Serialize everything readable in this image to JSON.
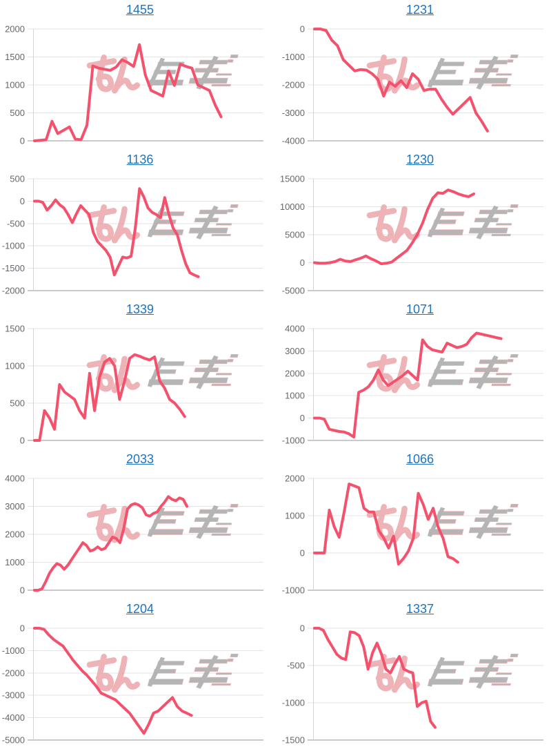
{
  "style": {
    "link_blue": "#1e73be",
    "line_color": "#f4516c",
    "grid_color": "#e3e3e3",
    "grid_bottom_color": "#c9c9c9",
    "axis_color": "#d4d4d4",
    "tick_label_color": "#63676b",
    "background": "#ffffff"
  },
  "watermark": {
    "text": "みんレポ",
    "pink": "#eba6ab",
    "gray": "#a3a3a3"
  },
  "chart_data": [
    {
      "type": "line",
      "title": "1455",
      "xlabel": "",
      "ylabel": "",
      "ylim": [
        0,
        2000
      ],
      "yticks": [
        2000,
        1500,
        1000,
        500,
        0
      ],
      "span": 0.82,
      "grid": true,
      "legend": false,
      "values": [
        0,
        10,
        20,
        350,
        130,
        190,
        250,
        30,
        20,
        280,
        1340,
        1300,
        1280,
        1260,
        1320,
        1450,
        1400,
        1330,
        1720,
        1180,
        900,
        850,
        800,
        1250,
        990,
        1370,
        1330,
        1300,
        1000,
        950,
        900,
        640,
        430
      ]
    },
    {
      "type": "line",
      "title": "1231",
      "xlabel": "",
      "ylabel": "",
      "ylim": [
        -4000,
        0
      ],
      "yticks": [
        0,
        -1000,
        -2000,
        -3000,
        -4000
      ],
      "span": 0.76,
      "grid": true,
      "legend": false,
      "values": [
        0,
        0,
        -50,
        -400,
        -600,
        -1100,
        -1300,
        -1500,
        -1450,
        -1470,
        -1600,
        -1800,
        -2400,
        -1900,
        -2050,
        -1850,
        -2100,
        -1600,
        -1800,
        -2200,
        -2150,
        -2150,
        -2500,
        -2800,
        -3050,
        -2850,
        -2650,
        -2450,
        -3000,
        -3300,
        -3650
      ]
    },
    {
      "type": "line",
      "title": "1136",
      "xlabel": "",
      "ylabel": "",
      "ylim": [
        -2000,
        500
      ],
      "yticks": [
        500,
        0,
        -500,
        -1000,
        -1500,
        -2000
      ],
      "span": 0.72,
      "grid": true,
      "legend": false,
      "values": [
        0,
        0,
        -30,
        -200,
        -100,
        30,
        -80,
        -150,
        -300,
        -480,
        -280,
        -100,
        -200,
        -300,
        -700,
        -900,
        -1000,
        -1100,
        -1250,
        -1650,
        -1450,
        -1250,
        -1270,
        -1230,
        -600,
        280,
        100,
        -150,
        -250,
        -300,
        -370,
        80,
        -300,
        -600,
        -750,
        -1100,
        -1400,
        -1600,
        -1650,
        -1690
      ]
    },
    {
      "type": "line",
      "title": "1230",
      "xlabel": "",
      "ylabel": "",
      "ylim": [
        -5000,
        15000
      ],
      "yticks": [
        15000,
        10000,
        5000,
        0,
        -5000
      ],
      "span": 0.7,
      "grid": true,
      "legend": false,
      "values": [
        0,
        -100,
        -100,
        0,
        200,
        600,
        300,
        200,
        500,
        800,
        1200,
        700,
        300,
        -200,
        -100,
        100,
        800,
        1500,
        2200,
        3500,
        5000,
        7000,
        9500,
        11500,
        12500,
        12400,
        13000,
        12700,
        12300,
        12000,
        11800,
        12300
      ]
    },
    {
      "type": "line",
      "title": "1339",
      "xlabel": "",
      "ylabel": "",
      "ylim": [
        0,
        1500
      ],
      "yticks": [
        1500,
        1000,
        500,
        0
      ],
      "span": 0.66,
      "grid": true,
      "legend": false,
      "values": [
        0,
        0,
        400,
        300,
        150,
        750,
        650,
        600,
        550,
        400,
        300,
        900,
        400,
        850,
        1050,
        1100,
        1000,
        550,
        800,
        1100,
        1150,
        1130,
        1100,
        1080,
        1120,
        800,
        700,
        550,
        500,
        420,
        320
      ]
    },
    {
      "type": "line",
      "title": "1071",
      "xlabel": "",
      "ylabel": "",
      "ylim": [
        -1000,
        4000
      ],
      "yticks": [
        4000,
        3000,
        2000,
        1000,
        0,
        -1000
      ],
      "span": 0.82,
      "grid": true,
      "legend": false,
      "values": [
        0,
        0,
        -50,
        -500,
        -550,
        -600,
        -620,
        -700,
        -850,
        1150,
        1250,
        1400,
        1700,
        2150,
        1700,
        1450,
        1600,
        1750,
        1900,
        2100,
        1900,
        1700,
        3500,
        3200,
        3050,
        3000,
        2950,
        3350,
        3250,
        3150,
        3200,
        3300,
        3600,
        3800,
        3750,
        3700,
        3650,
        3600,
        3550
      ]
    },
    {
      "type": "line",
      "title": "2033",
      "xlabel": "",
      "ylabel": "",
      "ylim": [
        0,
        4000
      ],
      "yticks": [
        4000,
        3000,
        2000,
        1000,
        0
      ],
      "span": 0.67,
      "grid": true,
      "legend": false,
      "values": [
        0,
        0,
        50,
        300,
        600,
        800,
        950,
        900,
        750,
        900,
        1100,
        1300,
        1500,
        1700,
        1600,
        1400,
        1450,
        1550,
        1450,
        1500,
        1700,
        1900,
        1850,
        1700,
        2200,
        2900,
        3050,
        3100,
        3050,
        2950,
        2700,
        2650,
        2750,
        2800,
        3000,
        3150,
        3350,
        3250,
        3200,
        3300,
        3250,
        3000
      ]
    },
    {
      "type": "line",
      "title": "1066",
      "xlabel": "",
      "ylabel": "",
      "ylim": [
        -1000,
        2000
      ],
      "yticks": [
        2000,
        1000,
        0,
        -1000
      ],
      "span": 0.63,
      "grid": true,
      "legend": false,
      "values": [
        0,
        0,
        0,
        1150,
        700,
        420,
        1100,
        1850,
        1800,
        1750,
        1200,
        1100,
        1100,
        600,
        400,
        130,
        450,
        -300,
        -150,
        50,
        400,
        1600,
        1300,
        900,
        1200,
        700,
        400,
        -100,
        -150,
        -250
      ]
    },
    {
      "type": "line",
      "title": "1204",
      "xlabel": "",
      "ylabel": "",
      "ylim": [
        -5000,
        0
      ],
      "yticks": [
        0,
        -1000,
        -2000,
        -3000,
        -4000,
        -5000
      ],
      "span": 0.69,
      "grid": true,
      "legend": false,
      "values": [
        0,
        0,
        -50,
        -300,
        -500,
        -650,
        -800,
        -1100,
        -1400,
        -1650,
        -1900,
        -2100,
        -2350,
        -2600,
        -2900,
        -3000,
        -3100,
        -3200,
        -3400,
        -3600,
        -3800,
        -4100,
        -4400,
        -4700,
        -4300,
        -3800,
        -3700,
        -3500,
        -3300,
        -3100,
        -3500,
        -3700,
        -3800,
        -3900
      ]
    },
    {
      "type": "line",
      "title": "1337",
      "xlabel": "",
      "ylabel": "",
      "ylim": [
        -1500,
        0
      ],
      "yticks": [
        0,
        -500,
        -1000,
        -1500
      ],
      "span": 0.53,
      "grid": true,
      "legend": false,
      "values": [
        0,
        0,
        -30,
        -150,
        -250,
        -350,
        -400,
        -420,
        -50,
        -60,
        -100,
        -250,
        -550,
        -330,
        -200,
        -350,
        -550,
        -600,
        -480,
        -380,
        -550,
        -580,
        -600,
        -1050,
        -1000,
        -980,
        -1250,
        -1330
      ]
    }
  ]
}
